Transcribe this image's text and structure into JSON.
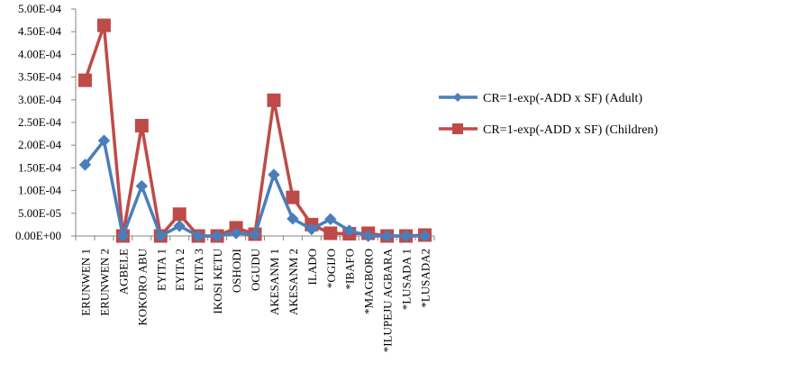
{
  "chart_data": {
    "type": "line",
    "categories": [
      "ERUNWEN 1",
      "ERUNWEN 2",
      "AGBELE",
      "KOKORO ABU",
      "EYITA 1",
      "EYITA 2",
      "EYITA 3",
      "IKOSI KETU",
      "OSHODI",
      "OGUDU",
      "AKESANM 1",
      "AKESANM 2",
      "ILADO",
      "*OGIJO",
      "*IBAFO",
      "*MAGBORO",
      "*ILUPEJU AGBARA",
      "*LUSADA 1",
      "*LUSADA2"
    ],
    "y_tick_labels": [
      "0.00E+00",
      "5.00E-05",
      "1.00E-04",
      "1.50E-04",
      "2.00E-04",
      "2.50E-04",
      "3.00E-04",
      "3.50E-04",
      "4.00E-04",
      "4.50E-04",
      "5.00E-04"
    ],
    "ylim": [
      0,
      0.0005
    ],
    "y_tick_step": 5e-05,
    "grid": false,
    "legend_position": "right",
    "title": "",
    "xlabel": "",
    "ylabel": "",
    "series": [
      {
        "name": "CR=1-exp(-ADD x SF) (Adult)",
        "color": "#4A7EBB",
        "marker": "diamond",
        "values": [
          0.000157,
          0.00021,
          0.0,
          0.00011,
          0.0,
          2.2e-05,
          0.0,
          0.0,
          6e-06,
          3e-06,
          0.000135,
          3.8e-05,
          1.5e-05,
          3.7e-05,
          1.2e-05,
          0.0,
          0.0,
          0.0,
          0.0
        ]
      },
      {
        "name": "CR=1-exp(-ADD x SF) (Children)",
        "color": "#BE4B48",
        "marker": "square",
        "values": [
          0.000343,
          0.000464,
          0.0,
          0.000243,
          0.0,
          4.8e-05,
          0.0,
          0.0,
          1.8e-05,
          4e-06,
          0.000299,
          8.5e-05,
          2.5e-05,
          6e-06,
          5e-06,
          6e-06,
          0.0,
          0.0,
          2e-06
        ]
      }
    ]
  }
}
